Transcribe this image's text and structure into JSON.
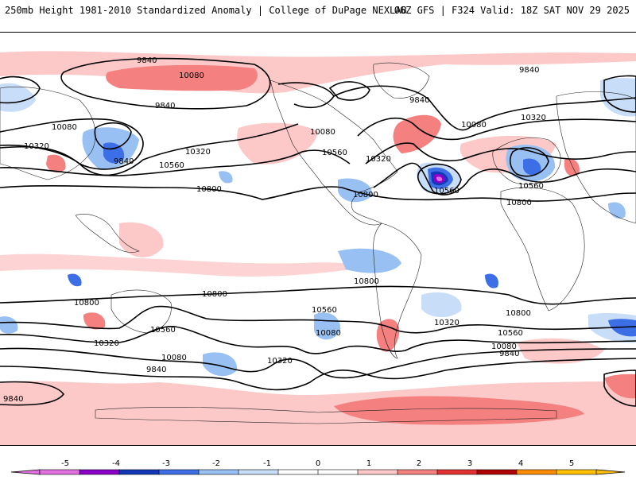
{
  "header": {
    "left": "250mb Height 1981-2010 Standardized Anomaly | College of DuPage NEXLAB",
    "right": "06Z GFS | F324 Valid: 18Z SAT NOV 29 2025"
  },
  "colorbar": {
    "ticks": [
      "-5",
      "-4",
      "-3",
      "-2",
      "-1",
      "0",
      "1",
      "2",
      "3",
      "4",
      "5"
    ],
    "colors": [
      "#e070e0",
      "#8a00c8",
      "#1238b8",
      "#3c6ee6",
      "#98c0f2",
      "#c8ddf8",
      "#ffffff",
      "#ffffff",
      "#fcc8c8",
      "#f48080",
      "#e43030",
      "#b00000",
      "#ff8c00",
      "#ffc000"
    ]
  },
  "contour_labels": [
    {
      "text": "9840"
    },
    {
      "text": "10080"
    },
    {
      "text": "9840"
    },
    {
      "text": "10080"
    },
    {
      "text": "10320"
    },
    {
      "text": "9840"
    },
    {
      "text": "10320"
    },
    {
      "text": "10560"
    },
    {
      "text": "10800"
    },
    {
      "text": "10080"
    },
    {
      "text": "10560"
    },
    {
      "text": "10320"
    },
    {
      "text": "9840"
    },
    {
      "text": "10080"
    },
    {
      "text": "10320"
    },
    {
      "text": "10560"
    },
    {
      "text": "10560"
    },
    {
      "text": "10800"
    },
    {
      "text": "10800"
    },
    {
      "text": "9840"
    },
    {
      "text": "10800"
    },
    {
      "text": "10800"
    },
    {
      "text": "10800"
    },
    {
      "text": "10800"
    },
    {
      "text": "10560"
    },
    {
      "text": "10560"
    },
    {
      "text": "10080"
    },
    {
      "text": "10320"
    },
    {
      "text": "10320"
    },
    {
      "text": "10080"
    },
    {
      "text": "9840"
    },
    {
      "text": "10320"
    },
    {
      "text": "10560"
    },
    {
      "text": "10080"
    },
    {
      "text": "9840"
    },
    {
      "text": "9840"
    }
  ],
  "colors": {
    "light_pink": "#fcc8c8",
    "mid_red": "#f48080",
    "light_blue": "#c8ddf8",
    "mid_blue": "#98c0f2",
    "blue": "#3c6ee6",
    "dark_blue": "#1238b8",
    "purple": "#8a00c8",
    "magenta": "#e070e0"
  }
}
